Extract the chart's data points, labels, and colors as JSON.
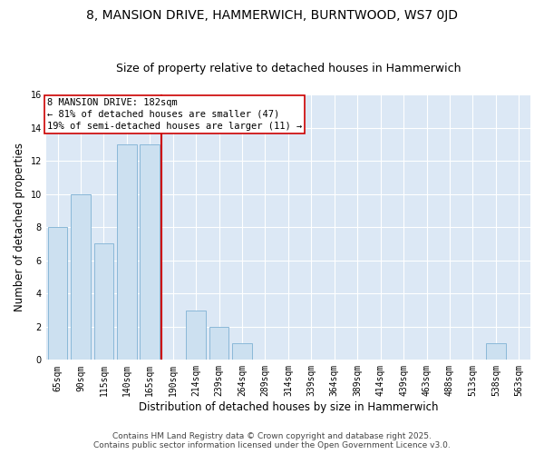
{
  "title": "8, MANSION DRIVE, HAMMERWICH, BURNTWOOD, WS7 0JD",
  "subtitle": "Size of property relative to detached houses in Hammerwich",
  "xlabel": "Distribution of detached houses by size in Hammerwich",
  "ylabel": "Number of detached properties",
  "bin_labels": [
    "65sqm",
    "90sqm",
    "115sqm",
    "140sqm",
    "165sqm",
    "190sqm",
    "214sqm",
    "239sqm",
    "264sqm",
    "289sqm",
    "314sqm",
    "339sqm",
    "364sqm",
    "389sqm",
    "414sqm",
    "439sqm",
    "463sqm",
    "488sqm",
    "513sqm",
    "538sqm",
    "563sqm"
  ],
  "bar_values": [
    8,
    10,
    7,
    13,
    13,
    0,
    3,
    2,
    1,
    0,
    0,
    0,
    0,
    0,
    0,
    0,
    0,
    0,
    0,
    1,
    0
  ],
  "bar_color": "#cce0f0",
  "bar_edge_color": "#8ab8d8",
  "reference_line_x": 5.0,
  "reference_line_label": "8 MANSION DRIVE: 182sqm",
  "annotation_line1": "← 81% of detached houses are smaller (47)",
  "annotation_line2": "19% of semi-detached houses are larger (11) →",
  "annotation_box_color": "#ffffff",
  "annotation_box_edge": "#cc0000",
  "reference_line_color": "#cc0000",
  "ylim": [
    0,
    16
  ],
  "yticks": [
    0,
    2,
    4,
    6,
    8,
    10,
    12,
    14,
    16
  ],
  "fig_bg_color": "#ffffff",
  "plot_bg_color": "#dce8f5",
  "footer_line1": "Contains HM Land Registry data © Crown copyright and database right 2025.",
  "footer_line2": "Contains public sector information licensed under the Open Government Licence v3.0.",
  "title_fontsize": 10,
  "subtitle_fontsize": 9,
  "axis_label_fontsize": 8.5,
  "tick_fontsize": 7,
  "annotation_fontsize": 7.5,
  "footer_fontsize": 6.5
}
